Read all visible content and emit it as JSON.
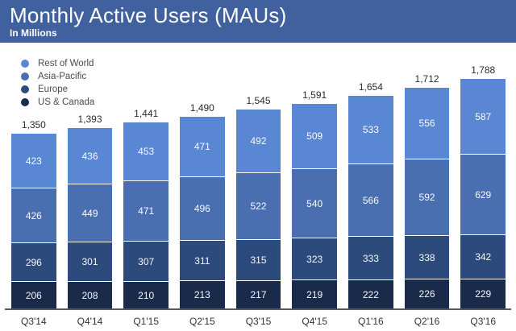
{
  "header": {
    "title": "Monthly Active Users (MAUs)",
    "subtitle": "In Millions",
    "background_color": "#40619E",
    "text_color": "#FFFFFF"
  },
  "legend": {
    "position": "top-left",
    "items": [
      {
        "label": "Rest of World",
        "color": "#5A87D3"
      },
      {
        "label": "Asia-Pacific",
        "color": "#4A6FB1"
      },
      {
        "label": "Europe",
        "color": "#2D4A7D"
      },
      {
        "label": "US & Canada",
        "color": "#1A2A4A"
      }
    ]
  },
  "chart_data": {
    "type": "bar",
    "stacked": true,
    "title": "Monthly Active Users (MAUs)",
    "subtitle": "In Millions",
    "unit": "millions",
    "grid": false,
    "y_axis_visible": false,
    "legend_position": "top-left",
    "categories": [
      "Q3'14",
      "Q4'14",
      "Q1'15",
      "Q2'15",
      "Q3'15",
      "Q4'15",
      "Q1'16",
      "Q2'16",
      "Q3'16"
    ],
    "series": [
      {
        "name": "US & Canada",
        "color": "#1A2A4A",
        "values": [
          206,
          208,
          210,
          213,
          217,
          219,
          222,
          226,
          229
        ]
      },
      {
        "name": "Europe",
        "color": "#2D4A7D",
        "values": [
          296,
          301,
          307,
          311,
          315,
          323,
          333,
          338,
          342
        ]
      },
      {
        "name": "Asia-Pacific",
        "color": "#4A6FB1",
        "values": [
          426,
          449,
          471,
          496,
          522,
          540,
          566,
          592,
          629
        ]
      },
      {
        "name": "Rest of World",
        "color": "#5A87D3",
        "values": [
          423,
          436,
          453,
          471,
          492,
          509,
          533,
          556,
          587
        ]
      }
    ],
    "totals": [
      "1,350",
      "1,393",
      "1,441",
      "1,490",
      "1,545",
      "1,591",
      "1,654",
      "1,712",
      "1,788"
    ]
  }
}
